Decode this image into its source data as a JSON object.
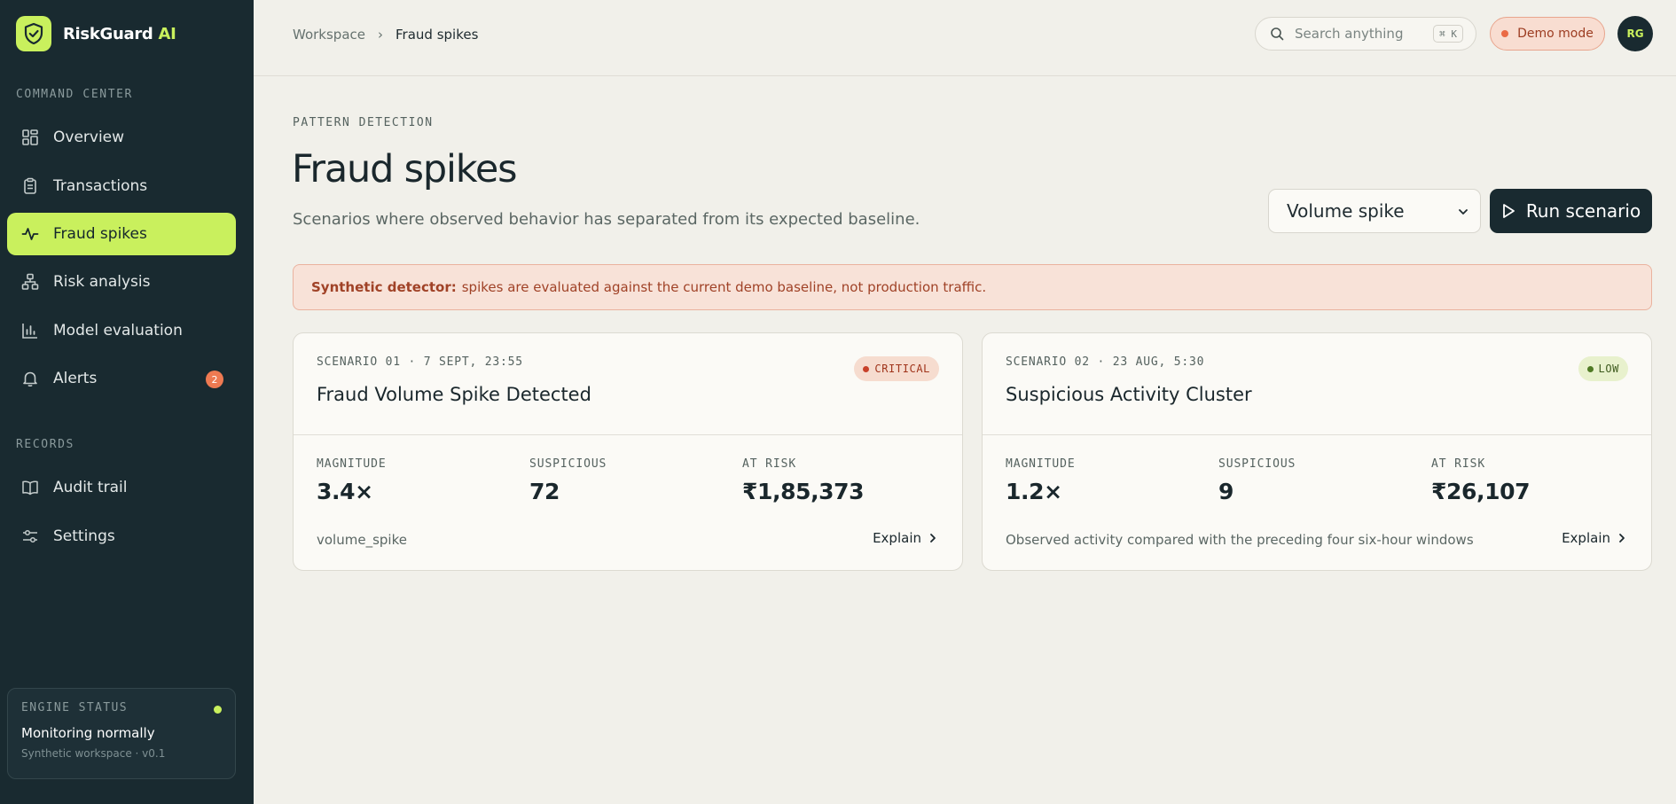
{
  "brand": {
    "name": "RiskGuard",
    "accent": "AI"
  },
  "sidebar": {
    "sections": [
      {
        "title": "COMMAND CENTER"
      },
      {
        "title": "RECORDS"
      }
    ],
    "items": [
      {
        "label": "Overview"
      },
      {
        "label": "Transactions"
      },
      {
        "label": "Fraud spikes",
        "active": true
      },
      {
        "label": "Risk analysis"
      },
      {
        "label": "Model evaluation"
      },
      {
        "label": "Alerts",
        "count": "2"
      },
      {
        "label": "Audit trail"
      },
      {
        "label": "Settings"
      }
    ],
    "engine": {
      "title": "ENGINE STATUS",
      "status": "Monitoring normally",
      "sub": "Synthetic workspace · v0.1"
    }
  },
  "topbar": {
    "breadcrumb": [
      "Workspace",
      "Fraud spikes"
    ],
    "search_placeholder": "Search anything",
    "shortcut": "⌘ K",
    "demo_label": "Demo mode",
    "avatar_initials": "RG"
  },
  "main": {
    "eyebrow": "PATTERN DETECTION",
    "title": "Fraud spikes",
    "subtitle": "Scenarios where observed behavior has separated from its expected baseline.",
    "scenario_select": "Volume spike",
    "run_label": "Run scenario",
    "alert": {
      "strong": "Synthetic detector:",
      "text": "spikes are evaluated against the current demo baseline, not production traffic."
    },
    "cards": [
      {
        "meta": "SCENARIO 01 · 7 SEPT, 23:55",
        "title": "Fraud Volume Spike Detected",
        "severity": "CRITICAL",
        "metrics": [
          {
            "label": "MAGNITUDE",
            "value": "3.4×"
          },
          {
            "label": "SUSPICIOUS",
            "value": "72"
          },
          {
            "label": "AT RISK",
            "value": "₹1,85,373"
          }
        ],
        "footer": "volume_spike",
        "explain": "Explain"
      },
      {
        "meta": "SCENARIO 02 · 23 AUG, 5:30",
        "title": "Suspicious Activity Cluster",
        "severity": "LOW",
        "metrics": [
          {
            "label": "MAGNITUDE",
            "value": "1.2×"
          },
          {
            "label": "SUSPICIOUS",
            "value": "9"
          },
          {
            "label": "AT RISK",
            "value": "₹26,107"
          }
        ],
        "footer": "Observed activity compared with the preceding four six-hour windows",
        "explain": "Explain"
      }
    ]
  },
  "colors": {
    "sidebar_bg": "#192a30",
    "accent_lime": "#c9f05d",
    "critical": "#c8412a",
    "low": "#4f7a24",
    "page_bg": "#f1f0ea"
  }
}
